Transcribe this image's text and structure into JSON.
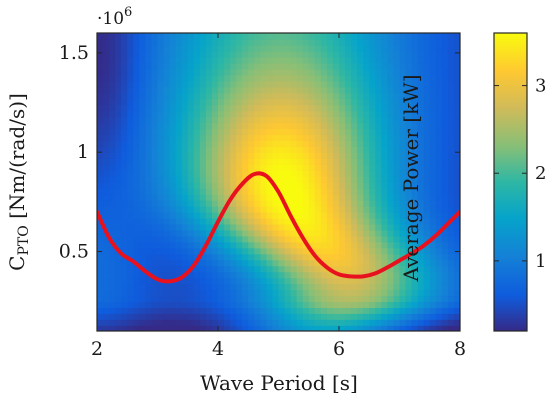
{
  "chart_data": {
    "type": "heatmap",
    "xlabel": "Wave Period [s]",
    "ylabel": "C",
    "ylabel_subscript": "PTO",
    "ylabel_units": " [Nm/(rad/s)]",
    "y_scale_label": "·10",
    "y_scale_exponent": "6",
    "colorbar_label": "Average Power [kW]",
    "xlim": [
      2,
      8
    ],
    "ylim": [
      0.1,
      1.6
    ],
    "x_ticks": [
      2,
      4,
      6,
      8
    ],
    "x_tick_labels": [
      "2",
      "4",
      "6",
      "8"
    ],
    "y_ticks": [
      0.5,
      1.0,
      1.5
    ],
    "y_tick_labels": [
      "0.5",
      "1",
      "1.5"
    ],
    "colorbar_range": [
      0.2,
      3.6
    ],
    "colorbar_ticks": [
      1,
      2,
      3
    ],
    "colorbar_tick_labels": [
      "1",
      "2",
      "3"
    ],
    "colormap": "parula",
    "grid": false,
    "optimal_curve": {
      "color": "#e8121e",
      "x": [
        2.0,
        2.2,
        2.4,
        2.6,
        2.8,
        3.0,
        3.2,
        3.4,
        3.6,
        3.8,
        4.0,
        4.2,
        4.4,
        4.6,
        4.8,
        5.0,
        5.2,
        5.4,
        5.6,
        5.8,
        6.0,
        6.2,
        6.4,
        6.6,
        6.8,
        7.0,
        7.2,
        7.4,
        7.6,
        7.8,
        8.0
      ],
      "y": [
        0.7,
        0.57,
        0.49,
        0.45,
        0.4,
        0.36,
        0.35,
        0.37,
        0.43,
        0.53,
        0.65,
        0.76,
        0.84,
        0.89,
        0.88,
        0.8,
        0.68,
        0.57,
        0.48,
        0.42,
        0.385,
        0.375,
        0.375,
        0.39,
        0.42,
        0.455,
        0.49,
        0.53,
        0.58,
        0.64,
        0.7
      ]
    }
  }
}
